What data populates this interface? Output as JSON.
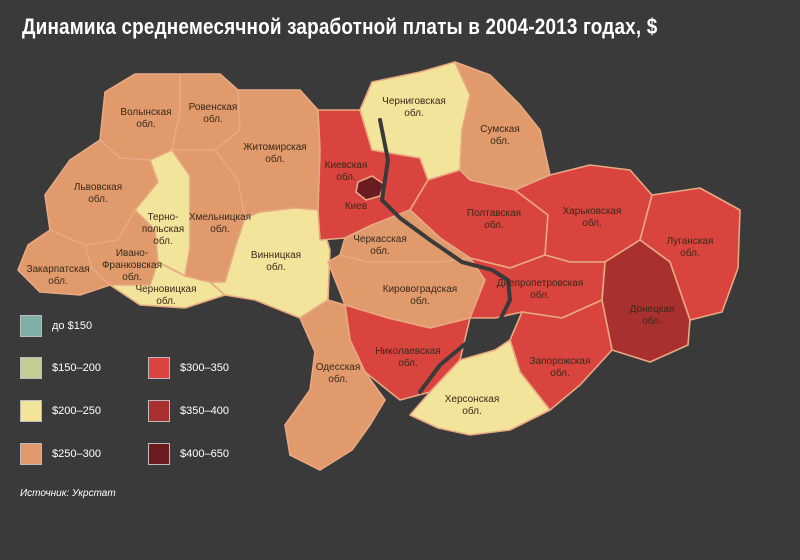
{
  "title": "Динамика среднемесячной заработной платы в 2004-2013 годах, $",
  "source": "Источник: Укрстат",
  "colors": {
    "background": "#3a3a3a",
    "up_to_150": "#7fb0a8",
    "150_200": "#c6cc96",
    "200_250": "#f2e49a",
    "250_300": "#e09a6c",
    "300_350": "#d9443f",
    "350_400": "#a8302e",
    "400_650": "#6b1c20"
  },
  "legend": [
    {
      "label": "до $150",
      "color": "#7fb0a8"
    },
    {
      "label": "$150–200",
      "color": "#c6cc96"
    },
    {
      "label": "$200–250",
      "color": "#f2e49a"
    },
    {
      "label": "$250–300",
      "color": "#e09a6c"
    },
    {
      "label": "$300–350",
      "color": "#d9443f"
    },
    {
      "label": "$350–400",
      "color": "#a8302e"
    },
    {
      "label": "$400–650",
      "color": "#6b1c20"
    }
  ],
  "regions": [
    {
      "id": "volyn",
      "line1": "Волынская",
      "line2": "обл.",
      "category": "$250–300"
    },
    {
      "id": "rivne",
      "line1": "Ровенская",
      "line2": "обл.",
      "category": "$250–300"
    },
    {
      "id": "lviv",
      "line1": "Львовская",
      "line2": "обл.",
      "category": "$250–300"
    },
    {
      "id": "zakarpattia",
      "line1": "Закарпатская",
      "line2": "обл.",
      "category": "$250–300"
    },
    {
      "id": "ivano-frankivsk",
      "line1": "Ивано-",
      "line2": "Франковская",
      "line3": "обл.",
      "category": "$250–300"
    },
    {
      "id": "ternopil",
      "line1": "Терно-",
      "line2": "польская",
      "line3": "обл.",
      "category": "$200–250"
    },
    {
      "id": "chernivtsi",
      "line1": "Черновицкая",
      "line2": "обл.",
      "category": "$200–250"
    },
    {
      "id": "khmelnytskyi",
      "line1": "Хмельницкая",
      "line2": "обл.",
      "category": "$250–300"
    },
    {
      "id": "zhytomyr",
      "line1": "Житомирская",
      "line2": "обл.",
      "category": "$250–300"
    },
    {
      "id": "vinnytsia",
      "line1": "Винницкая",
      "line2": "обл.",
      "category": "$200–250"
    },
    {
      "id": "kyiv-obl",
      "line1": "Киевская",
      "line2": "обл.",
      "category": "$300–350"
    },
    {
      "id": "kyiv-city",
      "line1": "Киев",
      "category": "$400–650"
    },
    {
      "id": "chernihiv",
      "line1": "Черниговская",
      "line2": "обл.",
      "category": "$200–250"
    },
    {
      "id": "sumy",
      "line1": "Сумская",
      "line2": "обл.",
      "category": "$250–300"
    },
    {
      "id": "poltava",
      "line1": "Полтавская",
      "line2": "обл.",
      "category": "$300–350"
    },
    {
      "id": "kharkiv",
      "line1": "Харьковская",
      "line2": "обл.",
      "category": "$300–350"
    },
    {
      "id": "luhansk",
      "line1": "Луганская",
      "line2": "обл.",
      "category": "$300–350"
    },
    {
      "id": "donetsk",
      "line1": "Донецкая",
      "line2": "обл.",
      "category": "$350–400"
    },
    {
      "id": "cherkasy",
      "line1": "Черкасская",
      "line2": "обл.",
      "category": "$250–300"
    },
    {
      "id": "kirovohrad",
      "line1": "Кировоградская",
      "line2": "обл.",
      "category": "$250–300"
    },
    {
      "id": "dnipropetrovsk",
      "line1": "Днепропетровская",
      "line2": "обл.",
      "category": "$300–350"
    },
    {
      "id": "zaporizhzhia",
      "line1": "Запорожская",
      "line2": "обл.",
      "category": "$300–350"
    },
    {
      "id": "mykolaiv",
      "line1": "Николаевская",
      "line2": "обл.",
      "category": "$300–350"
    },
    {
      "id": "odesa",
      "line1": "Одесская",
      "line2": "обл.",
      "category": "$250–300"
    },
    {
      "id": "kherson",
      "line1": "Херсонская",
      "line2": "обл.",
      "category": "$200–250"
    }
  ]
}
